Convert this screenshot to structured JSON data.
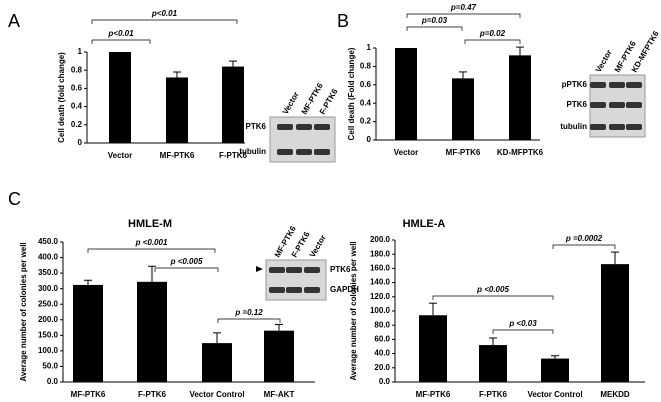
{
  "chart_data": [
    {
      "type": "bar",
      "panel": "A",
      "ylabel": "Cell death (fold change)",
      "categories": [
        "Vector",
        "MF-PTK6",
        "F-PTK6"
      ],
      "values": [
        1.0,
        0.72,
        0.84
      ],
      "errors": [
        0,
        0.06,
        0.06
      ],
      "color": "#000000",
      "ylim": [
        0,
        1
      ],
      "yticks": [
        0,
        0.2,
        0.4,
        0.6,
        0.8,
        1
      ],
      "annotations": [
        "p<0.01",
        "p<0.01"
      ],
      "blot": {
        "lanes": [
          "Vector",
          "MF-PTK6",
          "F-PTK6"
        ],
        "rows": [
          "PTK6",
          "tubulin"
        ]
      }
    },
    {
      "type": "bar",
      "panel": "B",
      "ylabel": "Cell death (Fold change)",
      "categories": [
        "Vector",
        "MF-PTK6",
        "KD-MFPTK6"
      ],
      "values": [
        1.0,
        0.67,
        0.92
      ],
      "errors": [
        0,
        0.07,
        0.09
      ],
      "color": "#000000",
      "ylim": [
        0,
        1
      ],
      "yticks": [
        0,
        0.2,
        0.4,
        0.6,
        0.8,
        1
      ],
      "annotations": [
        "p=0.47",
        "p=0.03",
        "p=0.02"
      ],
      "blot": {
        "lanes": [
          "Vector",
          "MF-PTK6",
          "KD-MFPTK6"
        ],
        "rows": [
          "pPTK6",
          "PTK6",
          "tubulin"
        ]
      }
    },
    {
      "type": "bar",
      "panel": "C",
      "title": "HMLE-M",
      "ylabel": "Average number of colonies per well",
      "categories": [
        "MF-PTK6",
        "F-PTK6",
        "Vector Control",
        "MF-AKT"
      ],
      "values": [
        312,
        322,
        125,
        165
      ],
      "errors": [
        15,
        50,
        33,
        20
      ],
      "color": "#000000",
      "ylim": [
        0,
        450
      ],
      "yticks": [
        {
          "value": 0,
          "label": "0.0"
        },
        {
          "value": 50,
          "label": "50.0"
        },
        {
          "value": 100,
          "label": "100.0"
        },
        {
          "value": 150,
          "label": "150.0"
        },
        {
          "value": 200,
          "label": "200.0"
        },
        {
          "value": 250,
          "label": "250.0"
        },
        {
          "value": 300,
          "label": "300.0"
        },
        {
          "value": 350,
          "label": "350.0"
        },
        {
          "value": 400,
          "label": "400.0"
        },
        {
          "value": 450,
          "label": "450.0"
        }
      ],
      "annotations": [
        "p <0.001",
        "p <0.005",
        "p =0.12"
      ],
      "blot": {
        "lanes": [
          "MF-PTK6",
          "F-PTK6",
          "Vector"
        ],
        "rows": [
          "PTK6",
          "GAPDH"
        ]
      }
    },
    {
      "type": "bar",
      "title": "HMLE-A",
      "ylabel": "Average number of colonies per well",
      "categories": [
        "MF-PTK6",
        "F-PTK6",
        "Vector Control",
        "MEKDD"
      ],
      "values": [
        94,
        52,
        33,
        166
      ],
      "errors": [
        17,
        10,
        4,
        17
      ],
      "color": "#000000",
      "ylim": [
        0,
        200
      ],
      "yticks": [
        {
          "value": 0,
          "label": "0.0"
        },
        {
          "value": 20,
          "label": "20.0"
        },
        {
          "value": 40,
          "label": "40.0"
        },
        {
          "value": 60,
          "label": "60.0"
        },
        {
          "value": 80,
          "label": "80.0"
        },
        {
          "value": 100,
          "label": "100.0"
        },
        {
          "value": 120,
          "label": "120.0"
        },
        {
          "value": 140,
          "label": "140.0"
        },
        {
          "value": 160,
          "label": "160.0"
        },
        {
          "value": 180,
          "label": "180.0"
        },
        {
          "value": 200,
          "label": "200.0"
        }
      ],
      "annotations": [
        "p <0.005",
        "p <0.03",
        "p =0.0002"
      ]
    }
  ]
}
